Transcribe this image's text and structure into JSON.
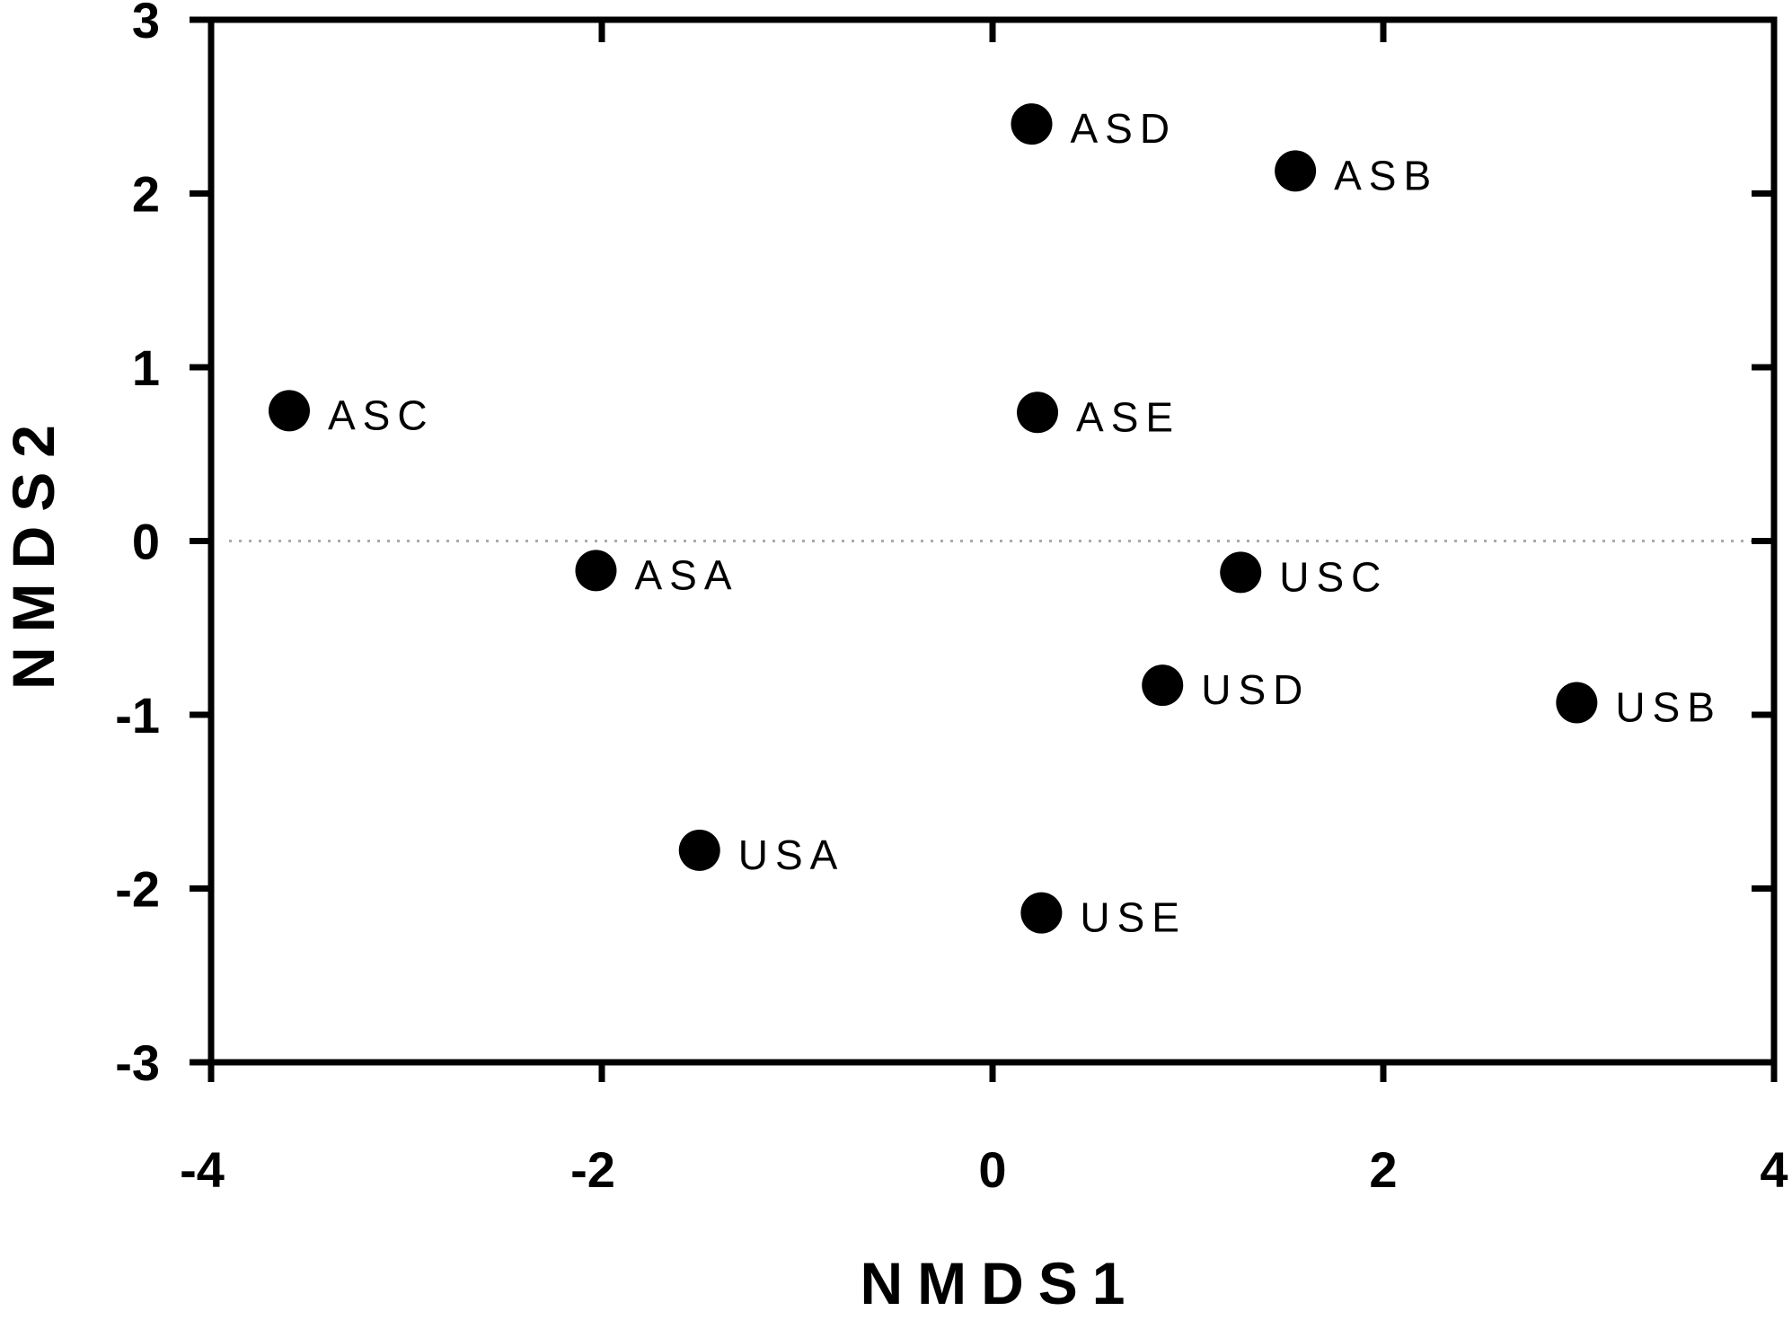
{
  "chart_data": {
    "type": "scatter",
    "title": "",
    "xlabel": "NMDS1",
    "ylabel": "NMDS2",
    "xlim": [
      -4,
      4
    ],
    "ylim": [
      -3,
      3
    ],
    "x_ticks": [
      -4,
      -2,
      0,
      2,
      4
    ],
    "y_ticks": [
      -3,
      -2,
      -1,
      0,
      1,
      2,
      3
    ],
    "x_tick_labels": [
      "-4",
      "-2",
      "0",
      "2",
      "4"
    ],
    "y_tick_labels": [
      "-3",
      "-2",
      "-1",
      "0",
      "1",
      "2",
      "3"
    ],
    "grid": false,
    "zero_line": "dotted",
    "marker_color": "#000000",
    "points": [
      {
        "label": "ASD",
        "x": 0.2,
        "y": 2.4
      },
      {
        "label": "ASB",
        "x": 1.55,
        "y": 2.13
      },
      {
        "label": "ASC",
        "x": -3.6,
        "y": 0.75
      },
      {
        "label": "ASE",
        "x": 0.23,
        "y": 0.74
      },
      {
        "label": "ASA",
        "x": -2.03,
        "y": -0.17
      },
      {
        "label": "USC",
        "x": 1.27,
        "y": -0.18
      },
      {
        "label": "USD",
        "x": 0.87,
        "y": -0.83
      },
      {
        "label": "USB",
        "x": 2.99,
        "y": -0.93
      },
      {
        "label": "USA",
        "x": -1.5,
        "y": -1.78
      },
      {
        "label": "USE",
        "x": 0.25,
        "y": -2.14
      }
    ]
  }
}
